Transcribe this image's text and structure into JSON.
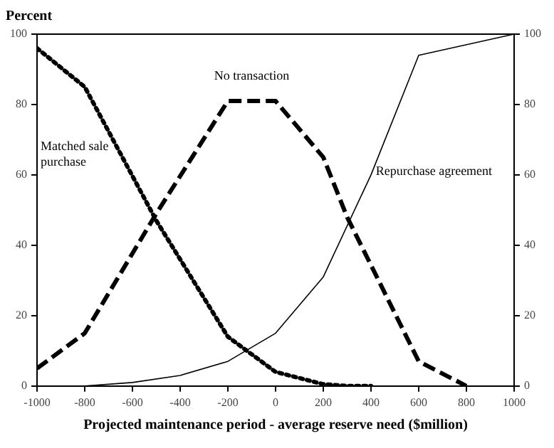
{
  "chart_data": {
    "type": "line",
    "ylabel": "Percent",
    "xlabel": "Projected maintenance period - average reserve need ($million)",
    "xlim": [
      -1000,
      1000
    ],
    "xticks": [
      -1000,
      -800,
      -600,
      -400,
      -200,
      0,
      200,
      400,
      600,
      800,
      1000
    ],
    "ylim": [
      0,
      100
    ],
    "yticks": [
      0,
      20,
      40,
      60,
      80,
      100
    ],
    "y2lim": [
      0,
      100
    ],
    "y2ticks": [
      0,
      20,
      40,
      60,
      80,
      100
    ],
    "grid": false,
    "legend": false,
    "marker": "none",
    "series": [
      {
        "name": "Matched sale purchase",
        "color": "#000000",
        "line_style": "dotted",
        "x": [
          -1000,
          -800,
          -500,
          -200,
          0,
          200,
          300,
          400
        ],
        "values": [
          96,
          85,
          47,
          14,
          4,
          0.5,
          0,
          0
        ]
      },
      {
        "name": "No transaction",
        "color": "#000000",
        "line_style": "dashed",
        "x": [
          -1000,
          -800,
          -500,
          -200,
          0,
          200,
          300,
          600,
          800
        ],
        "values": [
          5,
          15,
          49,
          81,
          81,
          65,
          48,
          7,
          0
        ]
      },
      {
        "name": "Repurchase agreement",
        "color": "#000000",
        "line_style": "solid",
        "x": [
          -800,
          -600,
          -400,
          -200,
          0,
          200,
          400,
          600,
          1000
        ],
        "values": [
          0,
          1,
          3,
          7,
          15,
          31,
          60,
          94,
          100
        ]
      }
    ]
  }
}
